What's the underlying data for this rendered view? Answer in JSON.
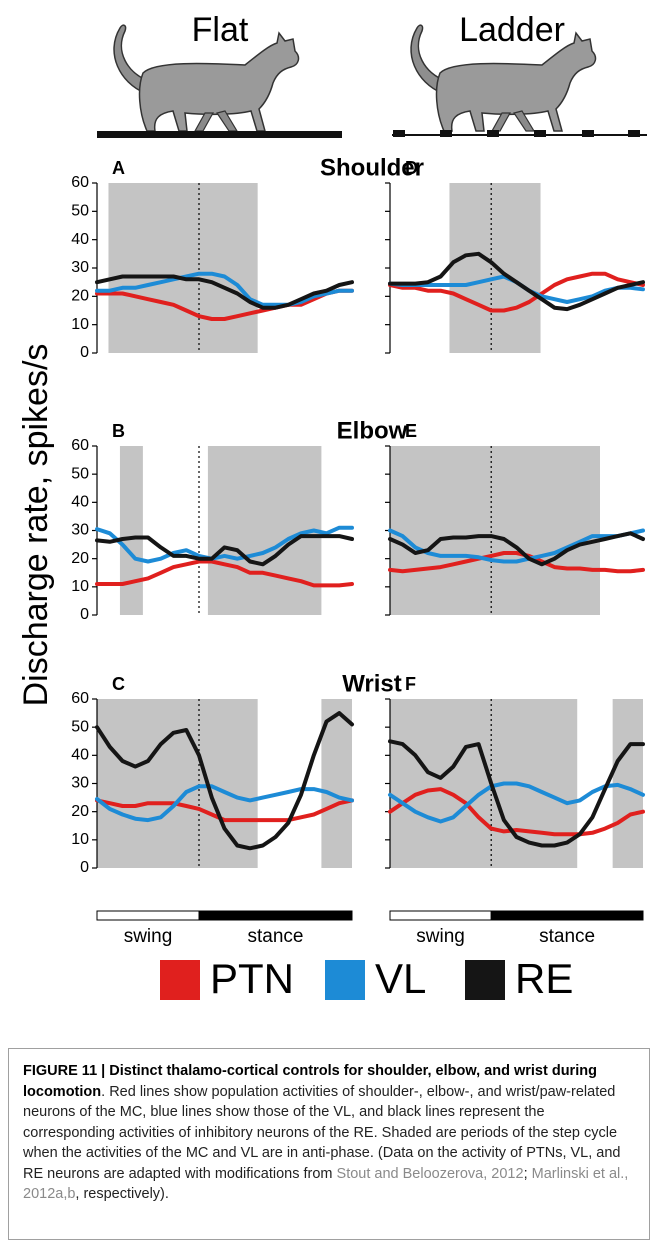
{
  "columns": [
    "Flat",
    "Ladder"
  ],
  "ylabel": "Discharge rate, spikes/s",
  "phases": [
    {
      "label": "swing",
      "range": [
        0,
        8
      ]
    },
    {
      "label": "stance",
      "range": [
        8,
        20
      ]
    }
  ],
  "chart_data": [
    {
      "type": "line",
      "panel": "A",
      "title": "Shoulder",
      "xlim": [
        0,
        20
      ],
      "ylim": [
        0,
        60
      ],
      "yticks": [
        0,
        10,
        20,
        30,
        40,
        50,
        60
      ],
      "x": [
        0,
        1,
        2,
        3,
        4,
        5,
        6,
        7,
        8,
        9,
        10,
        11,
        12,
        13,
        14,
        15,
        16,
        17,
        18,
        19,
        20
      ],
      "shaded": [
        [
          0.9,
          12.6
        ]
      ],
      "series": [
        {
          "name": "PTN",
          "color": "#e0201e",
          "values": [
            21,
            21,
            21,
            20,
            19,
            18,
            17,
            15,
            13,
            12,
            12,
            13,
            14,
            15,
            16,
            17,
            17,
            19,
            21,
            22,
            22
          ]
        },
        {
          "name": "VL",
          "color": "#1d8bd6",
          "values": [
            22,
            22,
            23,
            23,
            24,
            25,
            26,
            27,
            28,
            28,
            27,
            24,
            19,
            17,
            17,
            17,
            18,
            20,
            21,
            22,
            22
          ]
        },
        {
          "name": "RE",
          "color": "#151515",
          "values": [
            25,
            26,
            27,
            27,
            27,
            27,
            27,
            26,
            26,
            25,
            23,
            21,
            18,
            16,
            16,
            17,
            19,
            21,
            22,
            24,
            25
          ]
        }
      ]
    },
    {
      "type": "line",
      "panel": "B",
      "title": "Elbow",
      "xlim": [
        0,
        20
      ],
      "ylim": [
        0,
        60
      ],
      "yticks": [
        0,
        10,
        20,
        30,
        40,
        50,
        60
      ],
      "x": [
        0,
        1,
        2,
        3,
        4,
        5,
        6,
        7,
        8,
        9,
        10,
        11,
        12,
        13,
        14,
        15,
        16,
        17,
        18,
        19,
        20
      ],
      "shaded": [
        [
          1.8,
          3.6
        ],
        [
          8.7,
          17.6
        ]
      ],
      "series": [
        {
          "name": "PTN",
          "color": "#e0201e",
          "values": [
            11,
            11,
            11,
            12,
            13,
            15,
            17,
            18,
            19,
            19,
            18,
            17,
            15,
            15,
            14,
            13,
            12,
            10.5,
            10.5,
            10.5,
            11
          ]
        },
        {
          "name": "VL",
          "color": "#1d8bd6",
          "values": [
            30.5,
            29,
            25,
            20,
            19,
            20,
            22,
            23,
            21,
            20,
            21,
            20,
            21,
            22,
            24,
            27,
            29,
            30,
            29,
            31,
            31
          ]
        },
        {
          "name": "RE",
          "color": "#151515",
          "values": [
            26.5,
            26,
            27,
            27.5,
            27.5,
            24,
            21,
            21,
            20,
            20,
            24,
            23,
            19,
            18,
            21,
            25,
            28,
            28,
            28,
            28,
            27
          ]
        }
      ]
    },
    {
      "type": "line",
      "panel": "C",
      "title": "Wrist",
      "xlim": [
        0,
        20
      ],
      "ylim": [
        0,
        60
      ],
      "yticks": [
        0,
        10,
        20,
        30,
        40,
        50,
        60
      ],
      "x": [
        0,
        1,
        2,
        3,
        4,
        5,
        6,
        7,
        8,
        9,
        10,
        11,
        12,
        13,
        14,
        15,
        16,
        17,
        18,
        19,
        20
      ],
      "shaded": [
        [
          0,
          12.6
        ],
        [
          17.6,
          20
        ]
      ],
      "series": [
        {
          "name": "PTN",
          "color": "#e0201e",
          "values": [
            24,
            23,
            22,
            22,
            23,
            23,
            23,
            22,
            21,
            19,
            17,
            17,
            17,
            17,
            17,
            17,
            18,
            19,
            21,
            23,
            24
          ]
        },
        {
          "name": "VL",
          "color": "#1d8bd6",
          "values": [
            24.5,
            21,
            19,
            17.5,
            17,
            18,
            22,
            27,
            29,
            29,
            27,
            25,
            24,
            25,
            26,
            27,
            28,
            28,
            27,
            25,
            24
          ]
        },
        {
          "name": "RE",
          "color": "#151515",
          "values": [
            50,
            43,
            38,
            36,
            38,
            44,
            48,
            49,
            40,
            25,
            14,
            8,
            7,
            8,
            11,
            16,
            26,
            40,
            52,
            55,
            51
          ]
        }
      ]
    },
    {
      "type": "line",
      "panel": "D",
      "xlim": [
        0,
        20
      ],
      "ylim": [
        0,
        60
      ],
      "yticks": [
        0,
        10,
        20,
        30,
        40,
        50,
        60
      ],
      "x": [
        0,
        1,
        2,
        3,
        4,
        5,
        6,
        7,
        8,
        9,
        10,
        11,
        12,
        13,
        14,
        15,
        16,
        17,
        18,
        19,
        20
      ],
      "shaded": [
        [
          4.7,
          11.9
        ]
      ],
      "series": [
        {
          "name": "PTN",
          "color": "#e0201e",
          "values": [
            24,
            23,
            23,
            22,
            22,
            21,
            19,
            17,
            15,
            15,
            16,
            18,
            21,
            24,
            26,
            27,
            28,
            28,
            26,
            25,
            24
          ]
        },
        {
          "name": "VL",
          "color": "#1d8bd6",
          "values": [
            24.5,
            24,
            24,
            24,
            24,
            24,
            24,
            25,
            26,
            27,
            25,
            22,
            20,
            19,
            18,
            19,
            20,
            22,
            23,
            23,
            22.5
          ]
        },
        {
          "name": "RE",
          "color": "#151515",
          "values": [
            24.5,
            24.5,
            24.5,
            25,
            27,
            32,
            34.5,
            35,
            32,
            28,
            25,
            22,
            19,
            16,
            15.5,
            17,
            19,
            21,
            23,
            24,
            25
          ]
        }
      ]
    },
    {
      "type": "line",
      "panel": "E",
      "xlim": [
        0,
        20
      ],
      "ylim": [
        0,
        60
      ],
      "yticks": [
        0,
        10,
        20,
        30,
        40,
        50,
        60
      ],
      "x": [
        0,
        1,
        2,
        3,
        4,
        5,
        6,
        7,
        8,
        9,
        10,
        11,
        12,
        13,
        14,
        15,
        16,
        17,
        18,
        19,
        20
      ],
      "shaded": [
        [
          0,
          16.6
        ]
      ],
      "series": [
        {
          "name": "PTN",
          "color": "#e0201e",
          "values": [
            16,
            15.5,
            16,
            16.5,
            17,
            18,
            19,
            20,
            21,
            22,
            22,
            21,
            19,
            17,
            16.5,
            16.5,
            16,
            16,
            15.5,
            15.5,
            16
          ]
        },
        {
          "name": "VL",
          "color": "#1d8bd6",
          "values": [
            30,
            28,
            24,
            22,
            21,
            21,
            21,
            20.5,
            19.5,
            19,
            19,
            20,
            21,
            22,
            24,
            26,
            28,
            28,
            28,
            29,
            30
          ]
        },
        {
          "name": "RE",
          "color": "#151515",
          "values": [
            27,
            25,
            22,
            23,
            27,
            27.5,
            27.5,
            28,
            28,
            27,
            24,
            20,
            18,
            20,
            23,
            25,
            26,
            27,
            28,
            29,
            27
          ]
        }
      ]
    },
    {
      "type": "line",
      "panel": "F",
      "xlim": [
        0,
        20
      ],
      "ylim": [
        0,
        60
      ],
      "yticks": [
        0,
        10,
        20,
        30,
        40,
        50,
        60
      ],
      "x": [
        0,
        1,
        2,
        3,
        4,
        5,
        6,
        7,
        8,
        9,
        10,
        11,
        12,
        13,
        14,
        15,
        16,
        17,
        18,
        19,
        20
      ],
      "shaded": [
        [
          0,
          14.8
        ],
        [
          17.6,
          20
        ]
      ],
      "series": [
        {
          "name": "PTN",
          "color": "#e0201e",
          "values": [
            20,
            23,
            26,
            27.5,
            28,
            26,
            23,
            18,
            14,
            13,
            13.5,
            13,
            12.5,
            12,
            12,
            12,
            12.5,
            14,
            16,
            19,
            20
          ]
        },
        {
          "name": "VL",
          "color": "#1d8bd6",
          "values": [
            26,
            23,
            20,
            18,
            16.5,
            18,
            22,
            26,
            29,
            30,
            30,
            29,
            27,
            25,
            23,
            24,
            27,
            29,
            29.5,
            28,
            26
          ]
        },
        {
          "name": "RE",
          "color": "#151515",
          "values": [
            45,
            44,
            40,
            34,
            32,
            36,
            43,
            44,
            30,
            17,
            11,
            9,
            8,
            8,
            9,
            12,
            18,
            28,
            38,
            44,
            44
          ]
        }
      ]
    }
  ],
  "caption": {
    "title": "FIGURE 11 | Distinct thalamo-cortical controls for shoulder, elbow, and wrist during locomotion",
    "text_1": ". Red lines show population activities of shoulder-, elbow-, and wrist/paw-related neurons of the MC, blue lines show those of the VL, and black lines represent the corresponding activities of inhibitory neurons of the RE. Shaded are periods of the step cycle when the activities of the MC and VL are in anti-phase. (Data on the activity of PTNs, VL, and RE neurons are adapted with modifications from ",
    "link_1": "Stout and Beloozerova, 2012",
    "text_2": "; ",
    "link_2": "Marlinski et al., 2012a,b",
    "text_3": ", respectively)."
  }
}
